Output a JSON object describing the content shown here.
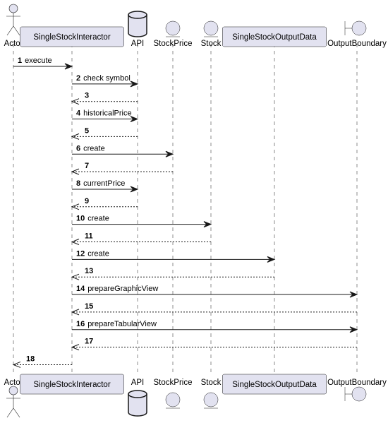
{
  "participants": [
    {
      "id": "actor",
      "name": "Actor",
      "kind": "actor"
    },
    {
      "id": "interactor",
      "name": "SingleStockInteractor",
      "kind": "participant"
    },
    {
      "id": "api",
      "name": "API",
      "kind": "database"
    },
    {
      "id": "stockprice",
      "name": "StockPrice",
      "kind": "entity"
    },
    {
      "id": "stock",
      "name": "Stock",
      "kind": "entity"
    },
    {
      "id": "outputdata",
      "name": "SingleStockOutputData",
      "kind": "participant"
    },
    {
      "id": "boundary",
      "name": "OutputBoundary",
      "kind": "boundary"
    }
  ],
  "messages": [
    {
      "n": "1",
      "from": "actor",
      "to": "interactor",
      "label": "execute",
      "dashed": false
    },
    {
      "n": "2",
      "from": "interactor",
      "to": "api",
      "label": "check symbol",
      "dashed": false
    },
    {
      "n": "3",
      "from": "api",
      "to": "interactor",
      "label": "",
      "dashed": true
    },
    {
      "n": "4",
      "from": "interactor",
      "to": "api",
      "label": "historicalPrice",
      "dashed": false
    },
    {
      "n": "5",
      "from": "api",
      "to": "interactor",
      "label": "",
      "dashed": true
    },
    {
      "n": "6",
      "from": "interactor",
      "to": "stockprice",
      "label": "create",
      "dashed": false
    },
    {
      "n": "7",
      "from": "stockprice",
      "to": "interactor",
      "label": "",
      "dashed": true
    },
    {
      "n": "8",
      "from": "interactor",
      "to": "api",
      "label": "currentPrice",
      "dashed": false
    },
    {
      "n": "9",
      "from": "api",
      "to": "interactor",
      "label": "",
      "dashed": true
    },
    {
      "n": "10",
      "from": "interactor",
      "to": "stock",
      "label": "create",
      "dashed": false
    },
    {
      "n": "11",
      "from": "stock",
      "to": "interactor",
      "label": "",
      "dashed": true
    },
    {
      "n": "12",
      "from": "interactor",
      "to": "outputdata",
      "label": "create",
      "dashed": false
    },
    {
      "n": "13",
      "from": "outputdata",
      "to": "interactor",
      "label": "",
      "dashed": true
    },
    {
      "n": "14",
      "from": "interactor",
      "to": "boundary",
      "label": "prepareGraphicView",
      "dashed": false
    },
    {
      "n": "15",
      "from": "boundary",
      "to": "interactor",
      "label": "",
      "dashed": true
    },
    {
      "n": "16",
      "from": "interactor",
      "to": "boundary",
      "label": "prepareTabularView",
      "dashed": false
    },
    {
      "n": "17",
      "from": "boundary",
      "to": "interactor",
      "label": "",
      "dashed": true
    },
    {
      "n": "18",
      "from": "interactor",
      "to": "actor",
      "label": "",
      "dashed": true
    }
  ],
  "colors": {
    "participant_fill": "#E2E2F0",
    "participant_stroke": "#181818",
    "lifeline": "#181818",
    "arrow": "#181818"
  }
}
